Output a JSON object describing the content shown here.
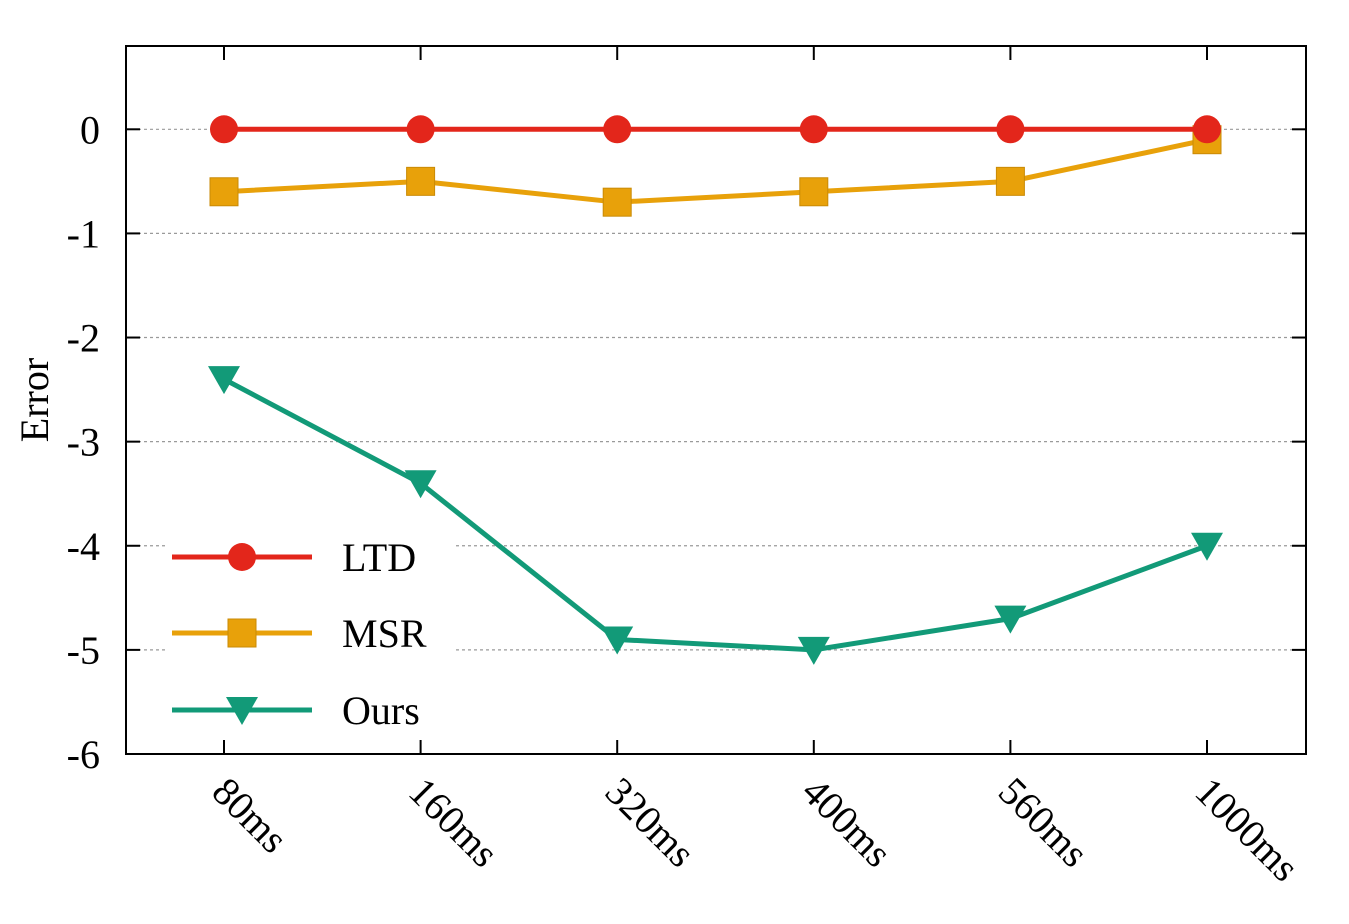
{
  "chart_data": {
    "type": "line",
    "title": "",
    "xlabel": "",
    "ylabel": "Error",
    "categories": [
      "80ms",
      "160ms",
      "320ms",
      "400ms",
      "560ms",
      "1000ms"
    ],
    "ylim": [
      -6,
      0.8
    ],
    "yticks": [
      0,
      -1,
      -2,
      -3,
      -4,
      -5,
      -6
    ],
    "ytick_labels": [
      "0",
      "-1",
      "-2",
      "-3",
      "-4",
      "-5",
      "-6"
    ],
    "grid": "horizontal dotted",
    "legend_position": "bottom-left",
    "series": [
      {
        "name": "LTD",
        "color": "#e3261b",
        "marker": "circle",
        "values": [
          0,
          0,
          0,
          0,
          0,
          0
        ]
      },
      {
        "name": "MSR",
        "color": "#e8a10a",
        "marker": "square",
        "values": [
          -0.6,
          -0.5,
          -0.7,
          -0.6,
          -0.5,
          -0.1
        ]
      },
      {
        "name": "Ours",
        "color": "#129a78",
        "marker": "triangle-down",
        "values": [
          -2.4,
          -3.4,
          -4.9,
          -5.0,
          -4.7,
          -4.0
        ]
      }
    ]
  }
}
